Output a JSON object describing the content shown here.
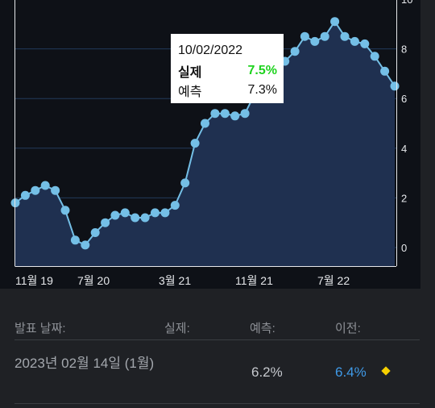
{
  "chart_data": {
    "type": "area",
    "x_tick_labels": [
      "11월 19",
      "7월 20",
      "3월 21",
      "11월 21",
      "7월 22"
    ],
    "y_ticks": [
      0,
      2,
      4,
      6,
      8,
      10
    ],
    "y_tick_labels": [
      "0",
      "2",
      "4",
      "6",
      "8",
      "10"
    ],
    "ylim": [
      -0.5,
      10
    ],
    "grid": true,
    "series": [
      {
        "values": [
          1.8,
          2.1,
          2.3,
          2.5,
          2.3,
          1.5,
          0.3,
          0.1,
          0.6,
          1.0,
          1.3,
          1.4,
          1.2,
          1.2,
          1.4,
          1.4,
          1.7,
          2.6,
          4.2,
          5.0,
          5.4,
          5.4,
          5.3,
          5.4,
          6.2,
          6.8,
          7.0,
          7.5,
          7.9,
          8.5,
          8.3,
          8.5,
          9.1,
          8.5,
          8.3,
          8.2,
          7.7,
          7.1,
          6.5
        ],
        "color": "#74bfe6"
      }
    ]
  },
  "tooltip": {
    "date": "10/02/2022",
    "actual_label": "실제",
    "actual_value": "7.5%",
    "forecast_label": "예측",
    "forecast_value": "7.3%"
  },
  "table": {
    "headers": {
      "release_date": "발표 날짜:",
      "actual": "실제:",
      "forecast": "예측:",
      "previous": "이전:"
    },
    "row": {
      "release_date": "2023년 02월 14일 (1월)",
      "actual": "",
      "forecast": "6.2%",
      "previous": "6.4%"
    }
  },
  "colors": {
    "line": "#74bfe6",
    "actual_value": "#1ed31e",
    "previous_value": "#3f9ae8",
    "importance_diamond": "#f6d000"
  }
}
